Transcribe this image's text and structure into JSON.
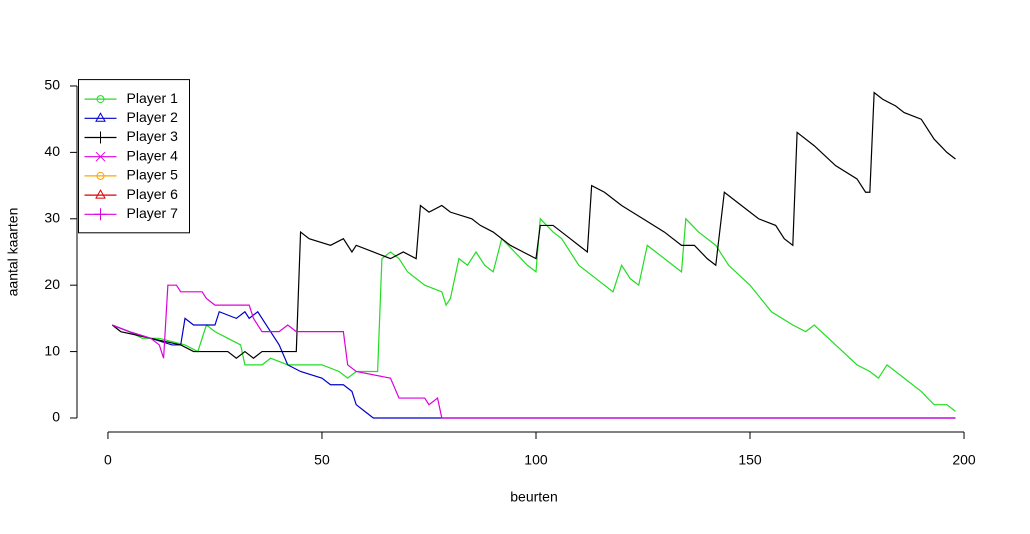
{
  "chart_data": {
    "type": "line",
    "x_label": "beurten",
    "y_label": "aantal kaarten",
    "xlim": [
      -6.88,
      205.88
    ],
    "ylim": [
      -1.96,
      50.96
    ],
    "xticks": [
      0,
      50,
      100,
      150,
      200
    ],
    "yticks": [
      0,
      10,
      20,
      30,
      40,
      50
    ],
    "legend": "top-left",
    "series": [
      {
        "name": "Player 1",
        "color": "#22dd22",
        "marker": "circle",
        "x": [
          1,
          5,
          8,
          12,
          18,
          21,
          23,
          25,
          28,
          31,
          32,
          36,
          38,
          42,
          50,
          54,
          56,
          58,
          63,
          64,
          66,
          68,
          70,
          74,
          78,
          79,
          80,
          82,
          84,
          86,
          88,
          90,
          92,
          95,
          98,
          100,
          101,
          104,
          106,
          108,
          110,
          114,
          118,
          120,
          122,
          124,
          126,
          128,
          132,
          134,
          135,
          138,
          142,
          145,
          150,
          155,
          160,
          163,
          165,
          170,
          175,
          178,
          180,
          182,
          186,
          190,
          193,
          196,
          198
        ],
        "values": [
          14,
          13,
          12,
          12,
          11,
          10,
          14,
          13,
          12,
          11,
          8,
          8,
          9,
          8,
          8,
          7,
          6,
          7,
          7,
          24,
          25,
          24,
          22,
          20,
          19,
          17,
          18,
          24,
          23,
          25,
          23,
          22,
          27,
          25,
          23,
          22,
          30,
          28,
          27,
          25,
          23,
          21,
          19,
          23,
          21,
          20,
          26,
          25,
          23,
          22,
          30,
          28,
          26,
          23,
          20,
          16,
          14,
          13,
          14,
          11,
          8,
          7,
          6,
          8,
          6,
          4,
          2,
          2,
          1
        ]
      },
      {
        "name": "Player 2",
        "color": "#0000cc",
        "marker": "triangle",
        "x": [
          1,
          5,
          10,
          15,
          17,
          18,
          20,
          25,
          26,
          30,
          32,
          33,
          35,
          37,
          40,
          42,
          45,
          50,
          52,
          55,
          57,
          58,
          60,
          62,
          198
        ],
        "values": [
          14,
          13,
          12,
          11,
          11,
          15,
          14,
          14,
          16,
          15,
          16,
          15,
          16,
          14,
          11,
          8,
          7,
          6,
          5,
          5,
          4,
          2,
          1,
          0,
          0
        ]
      },
      {
        "name": "Player 3",
        "color": "#000000",
        "marker": "plus",
        "x": [
          1,
          3,
          10,
          17,
          20,
          28,
          30,
          32,
          34,
          36,
          44,
          45,
          47,
          52,
          55,
          57,
          58,
          62,
          66,
          69,
          72,
          73,
          75,
          78,
          80,
          85,
          87,
          90,
          94,
          97,
          100,
          101,
          104,
          106,
          108,
          110,
          112,
          113,
          116,
          120,
          125,
          130,
          134,
          137,
          140,
          142,
          144,
          148,
          152,
          156,
          158,
          160,
          161,
          165,
          170,
          175,
          177,
          178,
          179,
          181,
          184,
          186,
          190,
          193,
          196,
          198
        ],
        "values": [
          14,
          13,
          12,
          11,
          10,
          10,
          9,
          10,
          9,
          10,
          10,
          28,
          27,
          26,
          27,
          25,
          26,
          25,
          24,
          25,
          24,
          32,
          31,
          32,
          31,
          30,
          29,
          28,
          26,
          25,
          24,
          29,
          29,
          28,
          27,
          26,
          25,
          35,
          34,
          32,
          30,
          28,
          26,
          26,
          24,
          23,
          34,
          32,
          30,
          29,
          27,
          26,
          43,
          41,
          38,
          36,
          34,
          34,
          49,
          48,
          47,
          46,
          45,
          42,
          40,
          39
        ]
      },
      {
        "name": "Player 4",
        "color": "#dd00dd",
        "marker": "cross",
        "x": [],
        "values": []
      },
      {
        "name": "Player 5",
        "color": "#ffa500",
        "marker": "circle",
        "x": [],
        "values": []
      },
      {
        "name": "Player 6",
        "color": "#dd0000",
        "marker": "triangle",
        "x": [],
        "values": []
      },
      {
        "name": "Player 7",
        "color": "#dd00dd",
        "marker": "plus",
        "x": [
          1,
          5,
          10,
          12,
          13,
          14,
          16,
          17,
          22,
          23,
          25,
          33,
          34,
          35,
          36,
          40,
          42,
          44,
          55,
          56,
          58,
          66,
          68,
          74,
          75,
          77,
          78,
          198
        ],
        "values": [
          14,
          13,
          12,
          11,
          9,
          20,
          20,
          19,
          19,
          18,
          17,
          17,
          15,
          14,
          13,
          13,
          14,
          13,
          13,
          8,
          7,
          6,
          3,
          3,
          2,
          3,
          0,
          0
        ]
      }
    ]
  }
}
